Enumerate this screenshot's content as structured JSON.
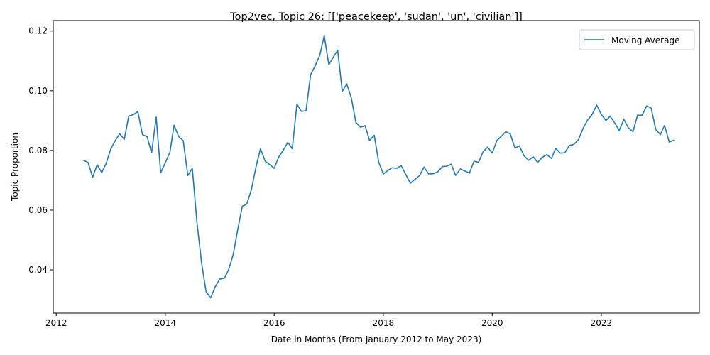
{
  "chart_data": {
    "type": "line",
    "title": "Top2vec, Topic 26: [['peacekeep', 'sudan', 'un', 'civilian']]",
    "xlabel": "Date in Months (From January 2012 to May 2023)",
    "ylabel": "Topic Proportion",
    "xlim": [
      "2011-12-12",
      "2023-10-20"
    ],
    "ylim": [
      0.0255,
      0.1235
    ],
    "x_ticks": [
      "2012",
      "2014",
      "2016",
      "2018",
      "2020",
      "2022"
    ],
    "y_ticks": [
      "0.04",
      "0.06",
      "0.08",
      "0.10",
      "0.12"
    ],
    "grid": false,
    "legend_position": "upper right",
    "series_color": "#1f77b4",
    "series": [
      {
        "name": "Moving Average",
        "x": [
          "2012-07",
          "2012-08",
          "2012-09",
          "2012-10",
          "2012-11",
          "2012-12",
          "2013-01",
          "2013-02",
          "2013-03",
          "2013-04",
          "2013-05",
          "2013-06",
          "2013-07",
          "2013-08",
          "2013-09",
          "2013-10",
          "2013-11",
          "2013-12",
          "2014-01",
          "2014-02",
          "2014-03",
          "2014-04",
          "2014-05",
          "2014-06",
          "2014-07",
          "2014-08",
          "2014-09",
          "2014-10",
          "2014-11",
          "2014-12",
          "2015-01",
          "2015-02",
          "2015-03",
          "2015-04",
          "2015-05",
          "2015-06",
          "2015-07",
          "2015-08",
          "2015-09",
          "2015-10",
          "2015-11",
          "2015-12",
          "2016-01",
          "2016-02",
          "2016-03",
          "2016-04",
          "2016-05",
          "2016-06",
          "2016-07",
          "2016-08",
          "2016-09",
          "2016-10",
          "2016-11",
          "2016-12",
          "2017-01",
          "2017-02",
          "2017-03",
          "2017-04",
          "2017-05",
          "2017-06",
          "2017-07",
          "2017-08",
          "2017-09",
          "2017-10",
          "2017-11",
          "2017-12",
          "2018-01",
          "2018-02",
          "2018-03",
          "2018-04",
          "2018-05",
          "2018-06",
          "2018-07",
          "2018-08",
          "2018-09",
          "2018-10",
          "2018-11",
          "2018-12",
          "2019-01",
          "2019-02",
          "2019-03",
          "2019-04",
          "2019-05",
          "2019-06",
          "2019-07",
          "2019-08",
          "2019-09",
          "2019-10",
          "2019-11",
          "2019-12",
          "2020-01",
          "2020-02",
          "2020-03",
          "2020-04",
          "2020-05",
          "2020-06",
          "2020-07",
          "2020-08",
          "2020-09",
          "2020-10",
          "2020-11",
          "2020-12",
          "2021-01",
          "2021-02",
          "2021-03",
          "2021-04",
          "2021-05",
          "2021-06",
          "2021-07",
          "2021-08",
          "2021-09",
          "2021-10",
          "2021-11",
          "2021-12",
          "2022-01",
          "2022-02",
          "2022-03",
          "2022-04",
          "2022-05",
          "2022-06",
          "2022-07",
          "2022-08",
          "2022-09",
          "2022-10",
          "2022-11",
          "2022-12",
          "2023-01",
          "2023-02",
          "2023-03",
          "2023-04",
          "2023-05"
        ],
        "values": [
          0.0767,
          0.076,
          0.071,
          0.0752,
          0.0726,
          0.0757,
          0.0806,
          0.0834,
          0.0856,
          0.0837,
          0.0915,
          0.092,
          0.093,
          0.0853,
          0.0846,
          0.0792,
          0.0912,
          0.0725,
          0.0759,
          0.0794,
          0.0885,
          0.0846,
          0.0833,
          0.0716,
          0.074,
          0.056,
          0.0424,
          0.0327,
          0.0306,
          0.0343,
          0.0369,
          0.0372,
          0.04,
          0.0451,
          0.0534,
          0.0613,
          0.062,
          0.0669,
          0.0745,
          0.0806,
          0.0764,
          0.0753,
          0.074,
          0.0779,
          0.08,
          0.0827,
          0.0806,
          0.0955,
          0.0931,
          0.0933,
          0.1054,
          0.1083,
          0.1119,
          0.1184,
          0.1087,
          0.1114,
          0.1136,
          0.0998,
          0.1023,
          0.0975,
          0.0894,
          0.0878,
          0.0883,
          0.0833,
          0.0851,
          0.0761,
          0.0721,
          0.0733,
          0.0742,
          0.074,
          0.0749,
          0.0719,
          0.069,
          0.0703,
          0.0716,
          0.0744,
          0.0721,
          0.0722,
          0.0728,
          0.0746,
          0.0747,
          0.0754,
          0.0716,
          0.0738,
          0.0731,
          0.0724,
          0.0764,
          0.076,
          0.0796,
          0.0811,
          0.0791,
          0.0833,
          0.0847,
          0.0863,
          0.0855,
          0.0808,
          0.0815,
          0.0782,
          0.0767,
          0.0779,
          0.076,
          0.0777,
          0.0786,
          0.0773,
          0.0807,
          0.0791,
          0.0792,
          0.0817,
          0.082,
          0.0836,
          0.0874,
          0.0902,
          0.0921,
          0.0952,
          0.0921,
          0.09,
          0.0915,
          0.0892,
          0.0867,
          0.0904,
          0.0876,
          0.0863,
          0.0918,
          0.0918,
          0.0949,
          0.0942,
          0.087,
          0.0853,
          0.0884,
          0.0828,
          0.0834
        ]
      }
    ]
  }
}
